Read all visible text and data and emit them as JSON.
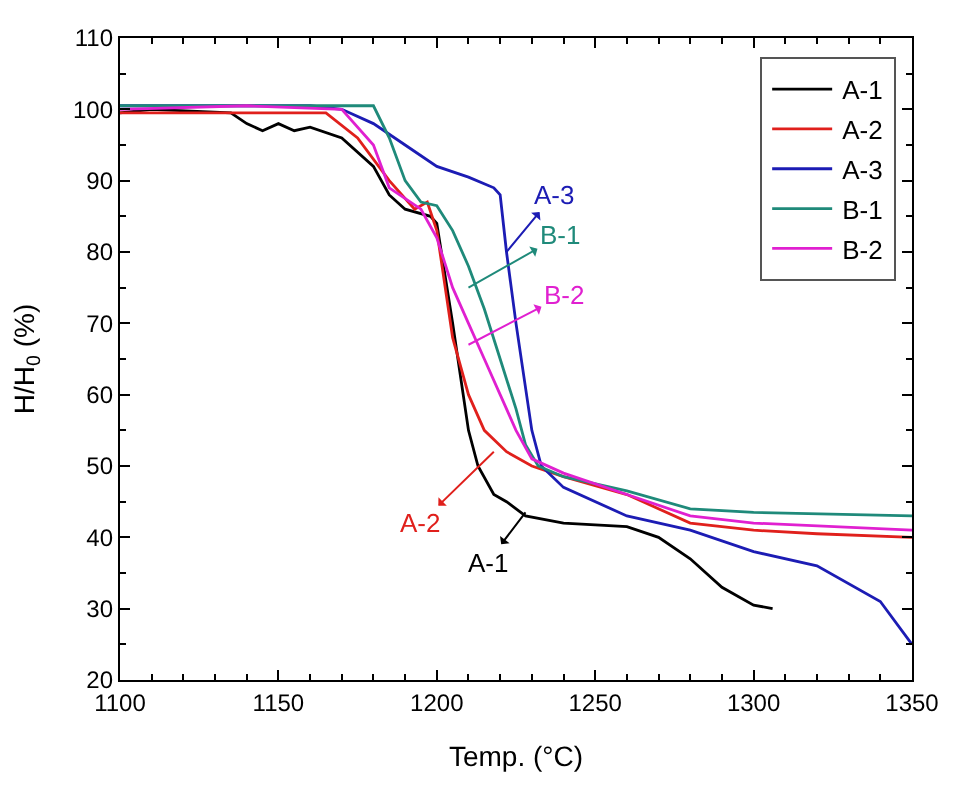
{
  "chart_data": {
    "type": "line",
    "xlabel": "Temp. (°C)",
    "ylabel": "H/H$_{0}$ (%)",
    "xlim": [
      1100,
      1350
    ],
    "xticks": [
      1100,
      1150,
      1200,
      1250,
      1300,
      1350
    ],
    "ylim": [
      20,
      110
    ],
    "yticks": [
      20,
      30,
      40,
      50,
      60,
      70,
      80,
      90,
      100,
      110
    ],
    "legend": "top right",
    "line_style": "solid",
    "marker": "none",
    "series": [
      {
        "name": "A-1",
        "color": "#000000",
        "x": [
          1100,
          1110,
          1135,
          1140,
          1145,
          1150,
          1155,
          1160,
          1170,
          1180,
          1185,
          1190,
          1198,
          1200,
          1205,
          1210,
          1213,
          1218,
          1222,
          1228,
          1240,
          1260,
          1270,
          1280,
          1290,
          1300,
          1306
        ],
        "values": [
          99.5,
          100,
          99.5,
          98,
          97,
          98,
          97,
          97.5,
          96,
          92,
          88,
          86,
          85,
          84,
          70,
          55,
          50,
          46,
          45,
          43,
          42,
          41.5,
          40,
          37,
          33,
          30.5,
          30
        ]
      },
      {
        "name": "A-2",
        "color": "#e0201c",
        "x": [
          1100,
          1120,
          1140,
          1165,
          1175,
          1185,
          1193,
          1197,
          1200,
          1205,
          1210,
          1215,
          1222,
          1230,
          1240,
          1260,
          1280,
          1300,
          1320,
          1350
        ],
        "values": [
          99.5,
          99.5,
          99.5,
          99.5,
          96,
          90,
          86,
          87,
          83,
          68,
          60,
          55,
          52,
          50,
          48.5,
          46,
          42,
          41,
          40.5,
          40
        ]
      },
      {
        "name": "A-3",
        "color": "#1c1cb4",
        "x": [
          1100,
          1120,
          1140,
          1160,
          1170,
          1180,
          1190,
          1200,
          1210,
          1218,
          1220,
          1222,
          1225,
          1230,
          1233,
          1240,
          1260,
          1280,
          1300,
          1320,
          1340,
          1350
        ],
        "values": [
          100.5,
          100.5,
          100.5,
          100.5,
          100,
          98,
          95,
          92,
          90.5,
          89,
          88,
          80,
          70,
          55,
          50,
          47,
          43,
          41,
          38,
          36,
          31,
          25
        ]
      },
      {
        "name": "B-1",
        "color": "#1f8a7a",
        "x": [
          1100,
          1140,
          1180,
          1185,
          1190,
          1195,
          1200,
          1205,
          1210,
          1215,
          1220,
          1225,
          1228,
          1232,
          1240,
          1260,
          1280,
          1300,
          1350
        ],
        "values": [
          100.5,
          100.5,
          100.5,
          96,
          90,
          87,
          86.5,
          83,
          78,
          72,
          65,
          58,
          53,
          50,
          48.5,
          46.5,
          44,
          43.5,
          43
        ]
      },
      {
        "name": "B-2",
        "color": "#e020d0",
        "x": [
          1100,
          1140,
          1170,
          1180,
          1185,
          1195,
          1200,
          1205,
          1210,
          1215,
          1220,
          1225,
          1230,
          1240,
          1260,
          1280,
          1300,
          1350
        ],
        "values": [
          100,
          100.5,
          100,
          95,
          89,
          86,
          82,
          75,
          70,
          65,
          60,
          55,
          51,
          49,
          46,
          43,
          42,
          41
        ]
      }
    ],
    "annotations": [
      {
        "text": "A-3",
        "x": 1222,
        "y": 80
      },
      {
        "text": "B-1",
        "x": 1210,
        "y": 75
      },
      {
        "text": "B-2",
        "x": 1210,
        "y": 67
      },
      {
        "text": "A-2",
        "x": 1218,
        "y": 52
      },
      {
        "text": "A-1",
        "x": 1228,
        "y": 43.5
      }
    ]
  }
}
